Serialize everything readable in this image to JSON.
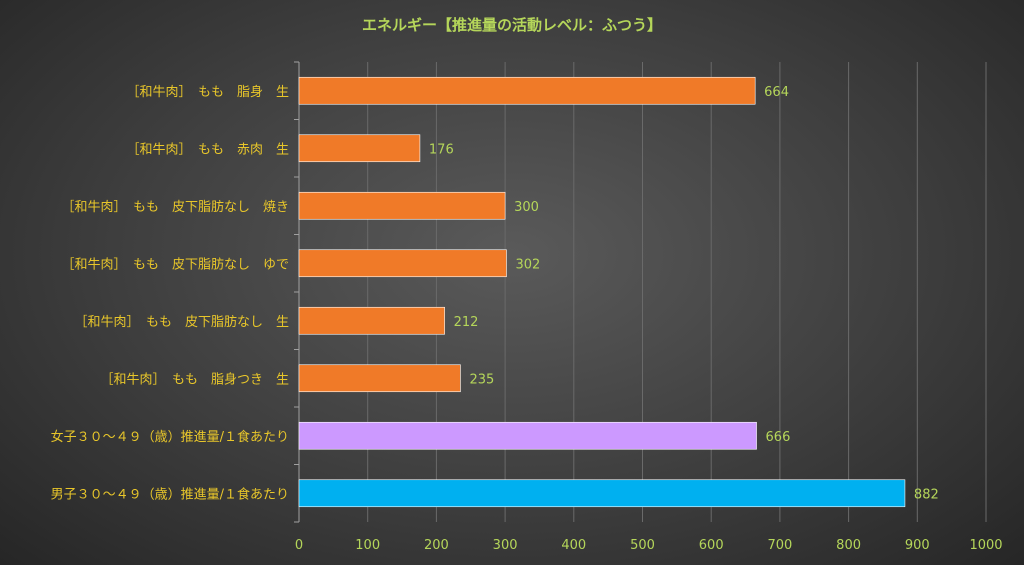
{
  "chart_data": {
    "type": "bar",
    "orientation": "horizontal",
    "title": "エネルギー【推進量の活動レベル：ふつう】",
    "categories": [
      "［和牛肉］　もも　脂身　生",
      "［和牛肉］　もも　赤肉　生",
      "［和牛肉］　もも　皮下脂肪なし　焼き",
      "［和牛肉］　もも　皮下脂肪なし　ゆで",
      "［和牛肉］　もも　皮下脂肪なし　生",
      "［和牛肉］　もも　脂身つき　生",
      "女子３０～４９（歳）推進量/１食あたり",
      "男子３０～４９（歳）推進量/１食あたり"
    ],
    "values": [
      664,
      176,
      300,
      302,
      212,
      235,
      666,
      882
    ],
    "colors": [
      "#f07a28",
      "#f07a28",
      "#f07a28",
      "#f07a28",
      "#f07a28",
      "#f07a28",
      "#cc99ff",
      "#00b0f0"
    ],
    "xlim": [
      0,
      1000
    ],
    "x_ticks": [
      "0",
      "100",
      "200",
      "300",
      "400",
      "500",
      "600",
      "700",
      "800",
      "900",
      "1000"
    ],
    "grid": true,
    "legend": "none"
  }
}
